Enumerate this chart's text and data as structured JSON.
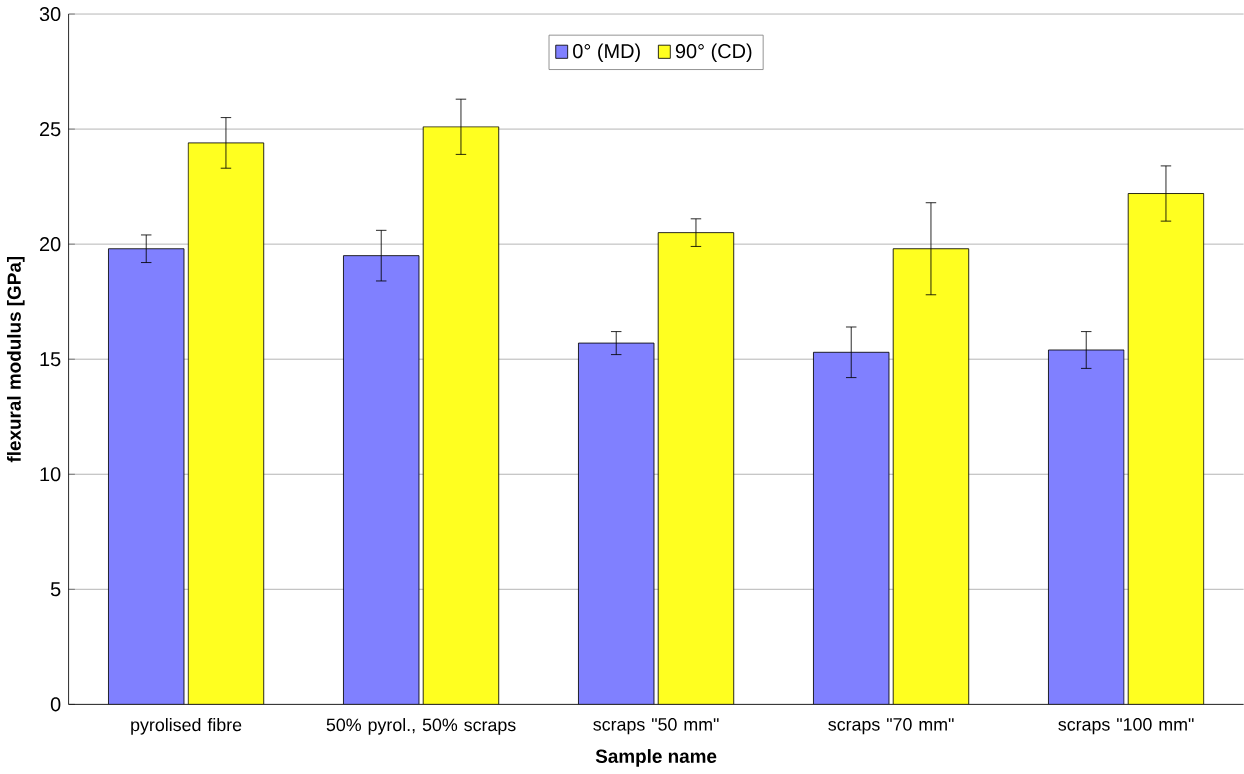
{
  "chart_data": {
    "type": "bar",
    "xlabel": "Sample name",
    "ylabel": "flexural modulus [GPa]",
    "categories": [
      "pyrolised fibre",
      "50% pyrol., 50% scraps",
      "scraps \"50 mm\"",
      "scraps \"70 mm\"",
      "scraps \"100 mm\""
    ],
    "series": [
      {
        "name": "0° (MD)",
        "color": "#8080ff",
        "values": [
          19.8,
          19.5,
          15.7,
          15.3,
          15.4
        ],
        "errors": [
          0.6,
          1.1,
          0.5,
          1.1,
          0.8
        ]
      },
      {
        "name": "90° (CD)",
        "color": "#ffff20",
        "values": [
          24.4,
          25.1,
          20.5,
          19.8,
          22.2
        ],
        "errors": [
          1.1,
          1.2,
          0.6,
          2.0,
          1.2
        ]
      }
    ],
    "ylim": [
      0,
      30
    ],
    "yticks": [
      0,
      5,
      10,
      15,
      20,
      25,
      30
    ],
    "grid": "y",
    "legend": "top"
  }
}
